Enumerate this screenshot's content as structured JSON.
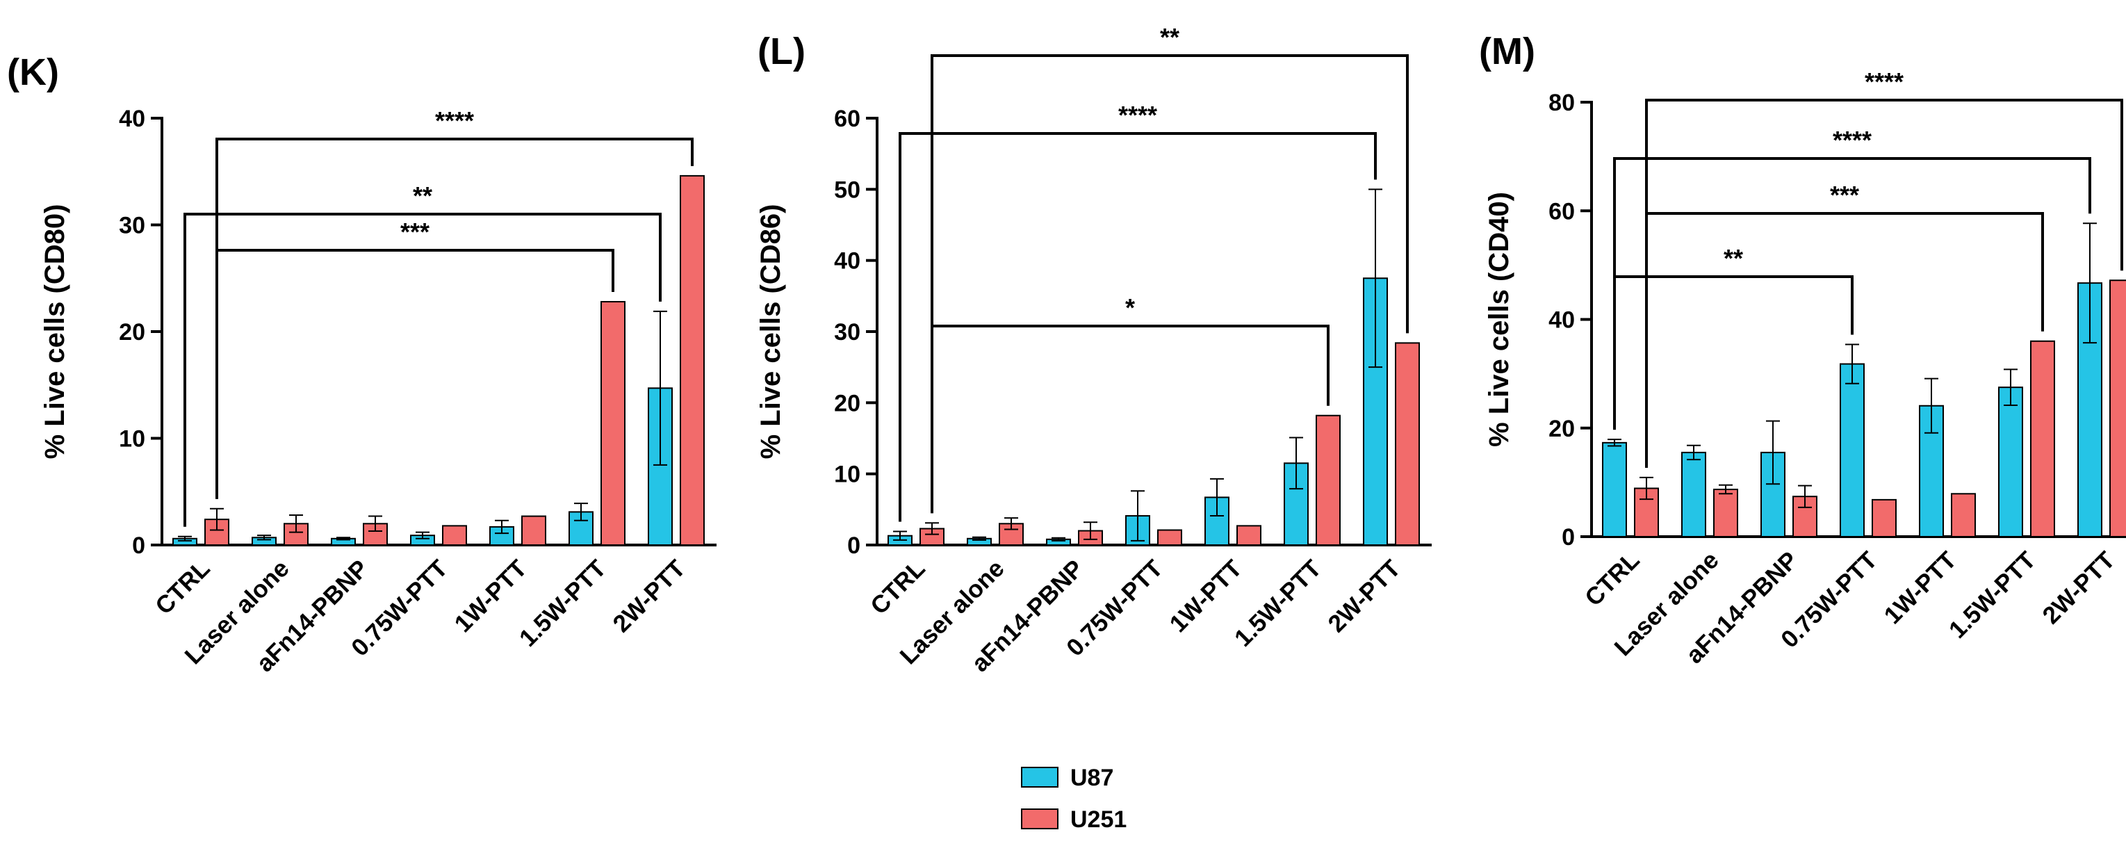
{
  "legend": [
    {
      "name": "U87",
      "color": "#25C4E6"
    },
    {
      "name": "U251",
      "color": "#F26B6B"
    }
  ],
  "chart_data": [
    {
      "panel": "(K)",
      "type": "bar",
      "ylabel": "% Live cells (CD80)",
      "ylim": [
        0,
        40
      ],
      "yticks": [
        0,
        10,
        20,
        30,
        40
      ],
      "categories": [
        "CTRL",
        "Laser alone",
        "aFn14-PBNP",
        "0.75W-PTT",
        "1W-PTT",
        "1.5W-PTT",
        "2W-PTT"
      ],
      "series": [
        {
          "name": "U87",
          "color": "#25C4E6",
          "values": [
            0.6,
            0.7,
            0.6,
            0.9,
            1.7,
            3.1,
            14.7
          ],
          "errors": [
            0.2,
            0.2,
            0.1,
            0.3,
            0.6,
            0.8,
            7.2
          ]
        },
        {
          "name": "U251",
          "color": "#F26B6B",
          "values": [
            2.4,
            2.0,
            2.0,
            1.8,
            2.7,
            22.8,
            34.6
          ],
          "errors": [
            1.0,
            0.8,
            0.7,
            0,
            0,
            0,
            0
          ]
        }
      ],
      "significance": [
        {
          "label": "****",
          "from": 0,
          "from_series": 1,
          "to": 6,
          "to_series": 1
        },
        {
          "label": "**",
          "from": 0,
          "from_series": 0,
          "to": 6,
          "to_series": 0
        },
        {
          "label": "***",
          "from": 0,
          "from_series": 1,
          "to": 5,
          "to_series": 1
        }
      ]
    },
    {
      "panel": "(L)",
      "type": "bar",
      "ylabel": "% Live cells (CD86)",
      "ylim": [
        0,
        60
      ],
      "yticks": [
        0,
        10,
        20,
        30,
        40,
        50,
        60
      ],
      "categories": [
        "CTRL",
        "Laser alone",
        "aFn14-PBNP",
        "0.75W-PTT",
        "1W-PTT",
        "1.5W-PTT",
        "2W-PTT"
      ],
      "series": [
        {
          "name": "U87",
          "color": "#25C4E6",
          "values": [
            1.3,
            0.9,
            0.8,
            4.1,
            6.7,
            11.5,
            37.5
          ],
          "errors": [
            0.6,
            0.2,
            0.2,
            3.5,
            2.6,
            3.6,
            12.5
          ]
        },
        {
          "name": "U251",
          "color": "#F26B6B",
          "values": [
            2.3,
            3.0,
            2.0,
            2.1,
            2.7,
            18.2,
            28.4
          ],
          "errors": [
            0.8,
            0.8,
            1.2,
            0,
            0,
            0,
            0
          ]
        }
      ],
      "significance": [
        {
          "label": "**",
          "from": 0,
          "from_series": 1,
          "to": 6,
          "to_series": 1
        },
        {
          "label": "****",
          "from": 0,
          "from_series": 0,
          "to": 6,
          "to_series": 0
        },
        {
          "label": "*",
          "from": 0,
          "from_series": 1,
          "to": 5,
          "to_series": 1
        }
      ]
    },
    {
      "panel": "(M)",
      "type": "bar",
      "ylabel": "% Live cells (CD40)",
      "ylim": [
        0,
        80
      ],
      "yticks": [
        0,
        20,
        40,
        60,
        80
      ],
      "categories": [
        "CTRL",
        "Laser alone",
        "aFn14-PBNP",
        "0.75W-PTT",
        "1W-PTT",
        "1.5W-PTT",
        "2W-PTT"
      ],
      "series": [
        {
          "name": "U87",
          "color": "#25C4E6",
          "values": [
            17.3,
            15.5,
            15.5,
            31.8,
            24.1,
            27.5,
            46.7
          ],
          "errors": [
            0.6,
            1.3,
            5.8,
            3.6,
            5.0,
            3.3,
            11.0
          ]
        },
        {
          "name": "U251",
          "color": "#F26B6B",
          "values": [
            8.9,
            8.7,
            7.4,
            6.8,
            7.9,
            36.0,
            47.2
          ],
          "errors": [
            2.0,
            0.8,
            2.0,
            0,
            0,
            0,
            0
          ]
        }
      ],
      "significance": [
        {
          "label": "****",
          "from": 0,
          "from_series": 1,
          "to": 6,
          "to_series": 1
        },
        {
          "label": "****",
          "from": 0,
          "from_series": 0,
          "to": 6,
          "to_series": 0
        },
        {
          "label": "***",
          "from": 0,
          "from_series": 1,
          "to": 5,
          "to_series": 1
        },
        {
          "label": "**",
          "from": 0,
          "from_series": 0,
          "to": 3,
          "to_series": 0
        }
      ]
    }
  ]
}
